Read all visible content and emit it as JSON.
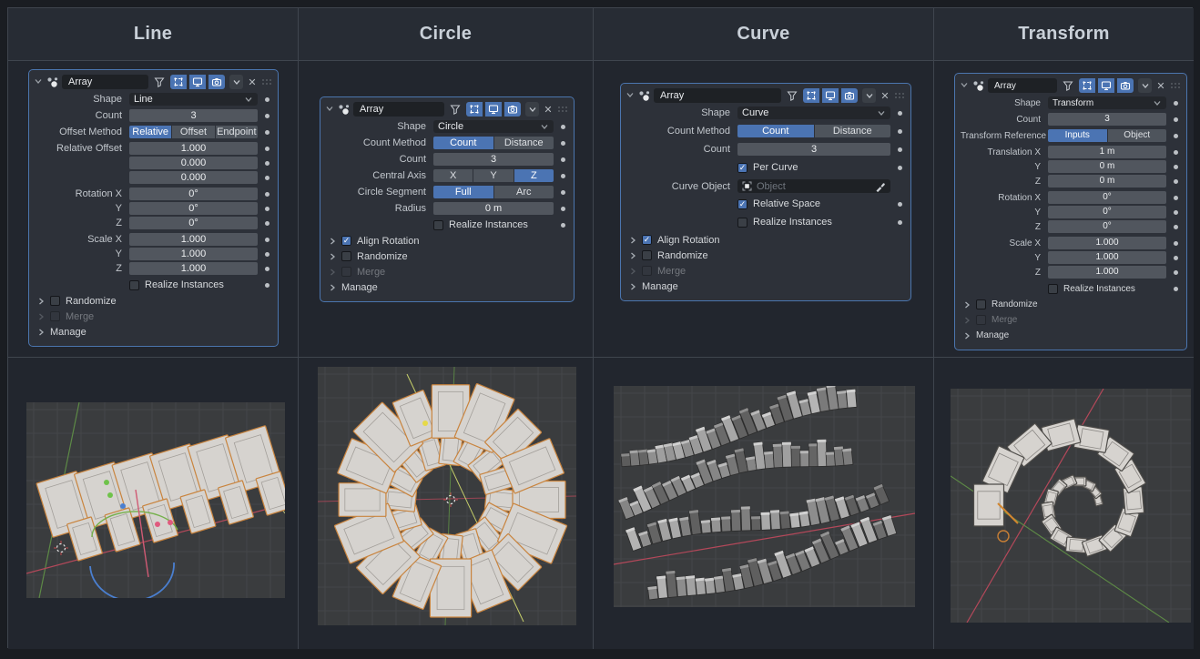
{
  "colors": {
    "accent_blue": "#4b74b3",
    "selected_outline_orange": "#c9843e",
    "panel_border_blue": "#4b75ae",
    "page_bg": "#1a1d22",
    "cell_bg": "#22262e"
  },
  "viewport_style": {
    "bg": "#3a3c3e",
    "grid": "#444649",
    "axis_x_color": "#b4485a",
    "axis_y_color": "#5d8a46",
    "axis_diag_color": "#c6cf6a",
    "selected_outline": "#c9843e",
    "object_fill": "#d6d3cf",
    "unselected_outline": "#4e4c49"
  },
  "columns": [
    {
      "title": "Line",
      "panel": {
        "name": "Array",
        "header_toggles": {
          "filter": false,
          "edit_mode": true,
          "show_viewport": true,
          "show_render": true
        },
        "rows": [
          {
            "t": "dropdown",
            "label": "Shape",
            "value": "Line",
            "dot": true
          },
          {
            "t": "field",
            "label": "Count",
            "value": "3",
            "dot": true,
            "gap": true
          },
          {
            "t": "seg",
            "label": "Offset Method",
            "options": [
              "Relative",
              "Offset",
              "Endpoint"
            ],
            "sel": 0,
            "dot": true,
            "gap": true
          },
          {
            "t": "field",
            "label": "Relative Offset",
            "value": "1.000",
            "dot": true,
            "gap": true
          },
          {
            "t": "field",
            "label": "",
            "value": "0.000",
            "dot": true
          },
          {
            "t": "field",
            "label": "",
            "value": "0.000",
            "dot": true
          },
          {
            "t": "field",
            "label": "Rotation X",
            "value": "0°",
            "dot": true,
            "gap": true
          },
          {
            "t": "field",
            "label": "Y",
            "value": "0°",
            "dot": true
          },
          {
            "t": "field",
            "label": "Z",
            "value": "0°",
            "dot": true
          },
          {
            "t": "field",
            "label": "Scale X",
            "value": "1.000",
            "dot": true,
            "gap": true
          },
          {
            "t": "field",
            "label": "Y",
            "value": "1.000",
            "dot": true
          },
          {
            "t": "field",
            "label": "Z",
            "value": "1.000",
            "dot": true
          },
          {
            "t": "check",
            "label": "Realize Instances",
            "checked": false,
            "dot": true,
            "gap": true
          }
        ],
        "subpanels": [
          {
            "label": "Randomize",
            "checkbox": true,
            "checked": false,
            "disabled": false
          },
          {
            "label": "Merge",
            "checkbox": true,
            "checked": false,
            "disabled": true
          },
          {
            "label": "Manage",
            "checkbox": false,
            "disabled": false
          }
        ]
      },
      "viewport": {
        "type": "line"
      }
    },
    {
      "title": "Circle",
      "panel": {
        "name": "Array",
        "header_toggles": {
          "filter": false,
          "edit_mode": true,
          "show_viewport": true,
          "show_render": true
        },
        "rows": [
          {
            "t": "dropdown",
            "label": "Shape",
            "value": "Circle",
            "dot": true
          },
          {
            "t": "seg",
            "label": "Count Method",
            "options": [
              "Count",
              "Distance"
            ],
            "sel": 0,
            "dot": true,
            "gap": true
          },
          {
            "t": "field",
            "label": "Count",
            "value": "3",
            "dot": true,
            "gap": true
          },
          {
            "t": "seg",
            "label": "Central Axis",
            "options": [
              "X",
              "Y",
              "Z"
            ],
            "sel": 2,
            "dot": true,
            "gap": true
          },
          {
            "t": "seg",
            "label": "Circle Segment",
            "options": [
              "Full",
              "Arc"
            ],
            "sel": 0,
            "dot": true,
            "gap": true
          },
          {
            "t": "field",
            "label": "Radius",
            "value": "0 m",
            "dot": true,
            "gap": true
          },
          {
            "t": "check",
            "label": "Realize Instances",
            "checked": false,
            "dot": true,
            "gap": true
          }
        ],
        "subpanels": [
          {
            "label": "Align Rotation",
            "checkbox": true,
            "checked": true,
            "disabled": false
          },
          {
            "label": "Randomize",
            "checkbox": true,
            "checked": false,
            "disabled": false
          },
          {
            "label": "Merge",
            "checkbox": true,
            "checked": false,
            "disabled": true
          },
          {
            "label": "Manage",
            "checkbox": false,
            "disabled": false
          }
        ]
      },
      "viewport": {
        "type": "circle"
      }
    },
    {
      "title": "Curve",
      "panel": {
        "name": "Array",
        "header_toggles": {
          "filter": false,
          "edit_mode": true,
          "show_viewport": true,
          "show_render": true
        },
        "rows": [
          {
            "t": "dropdown",
            "label": "Shape",
            "value": "Curve",
            "dot": true
          },
          {
            "t": "seg",
            "label": "Count Method",
            "options": [
              "Count",
              "Distance"
            ],
            "sel": 0,
            "dot": true,
            "gap": true
          },
          {
            "t": "field",
            "label": "Count",
            "value": "3",
            "dot": true,
            "gap": true
          },
          {
            "t": "check",
            "label": "Per Curve",
            "checked": true,
            "dot": true,
            "gap": true
          },
          {
            "t": "objfield",
            "label": "Curve Object",
            "placeholder": "Object",
            "dot": false,
            "gap": true
          },
          {
            "t": "check",
            "label": "Relative Space",
            "checked": true,
            "dot": true,
            "gap": true
          },
          {
            "t": "check",
            "label": "Realize Instances",
            "checked": false,
            "dot": true,
            "gap": true
          }
        ],
        "subpanels": [
          {
            "label": "Align Rotation",
            "checkbox": true,
            "checked": true,
            "disabled": false
          },
          {
            "label": "Randomize",
            "checkbox": true,
            "checked": false,
            "disabled": false
          },
          {
            "label": "Merge",
            "checkbox": true,
            "checked": false,
            "disabled": true
          },
          {
            "label": "Manage",
            "checkbox": false,
            "disabled": false
          }
        ]
      },
      "viewport": {
        "type": "curve"
      }
    },
    {
      "title": "Transform",
      "panel": {
        "name": "Array",
        "header_toggles": {
          "filter": false,
          "edit_mode": true,
          "show_viewport": true,
          "show_render": true
        },
        "rows": [
          {
            "t": "dropdown",
            "label": "Shape",
            "value": "Transform",
            "dot": true
          },
          {
            "t": "field",
            "label": "Count",
            "value": "3",
            "dot": true,
            "gap": true
          },
          {
            "t": "seg",
            "label": "Transform Reference",
            "options": [
              "Inputs",
              "Object"
            ],
            "sel": 0,
            "dot": true,
            "gap": true
          },
          {
            "t": "field",
            "label": "Translation X",
            "value": "1 m",
            "dot": true,
            "gap": true
          },
          {
            "t": "field",
            "label": "Y",
            "value": "0 m",
            "dot": true
          },
          {
            "t": "field",
            "label": "Z",
            "value": "0 m",
            "dot": true
          },
          {
            "t": "field",
            "label": "Rotation X",
            "value": "0°",
            "dot": true,
            "gap": true
          },
          {
            "t": "field",
            "label": "Y",
            "value": "0°",
            "dot": true
          },
          {
            "t": "field",
            "label": "Z",
            "value": "0°",
            "dot": true
          },
          {
            "t": "field",
            "label": "Scale X",
            "value": "1.000",
            "dot": true,
            "gap": true
          },
          {
            "t": "field",
            "label": "Y",
            "value": "1.000",
            "dot": true
          },
          {
            "t": "field",
            "label": "Z",
            "value": "1.000",
            "dot": true
          },
          {
            "t": "check",
            "label": "Realize Instances",
            "checked": false,
            "dot": true,
            "gap": true
          }
        ],
        "subpanels": [
          {
            "label": "Randomize",
            "checkbox": true,
            "checked": false,
            "disabled": false
          },
          {
            "label": "Merge",
            "checkbox": true,
            "checked": false,
            "disabled": true
          },
          {
            "label": "Manage",
            "checkbox": false,
            "disabled": false
          }
        ]
      },
      "viewport": {
        "type": "spiral"
      }
    }
  ]
}
